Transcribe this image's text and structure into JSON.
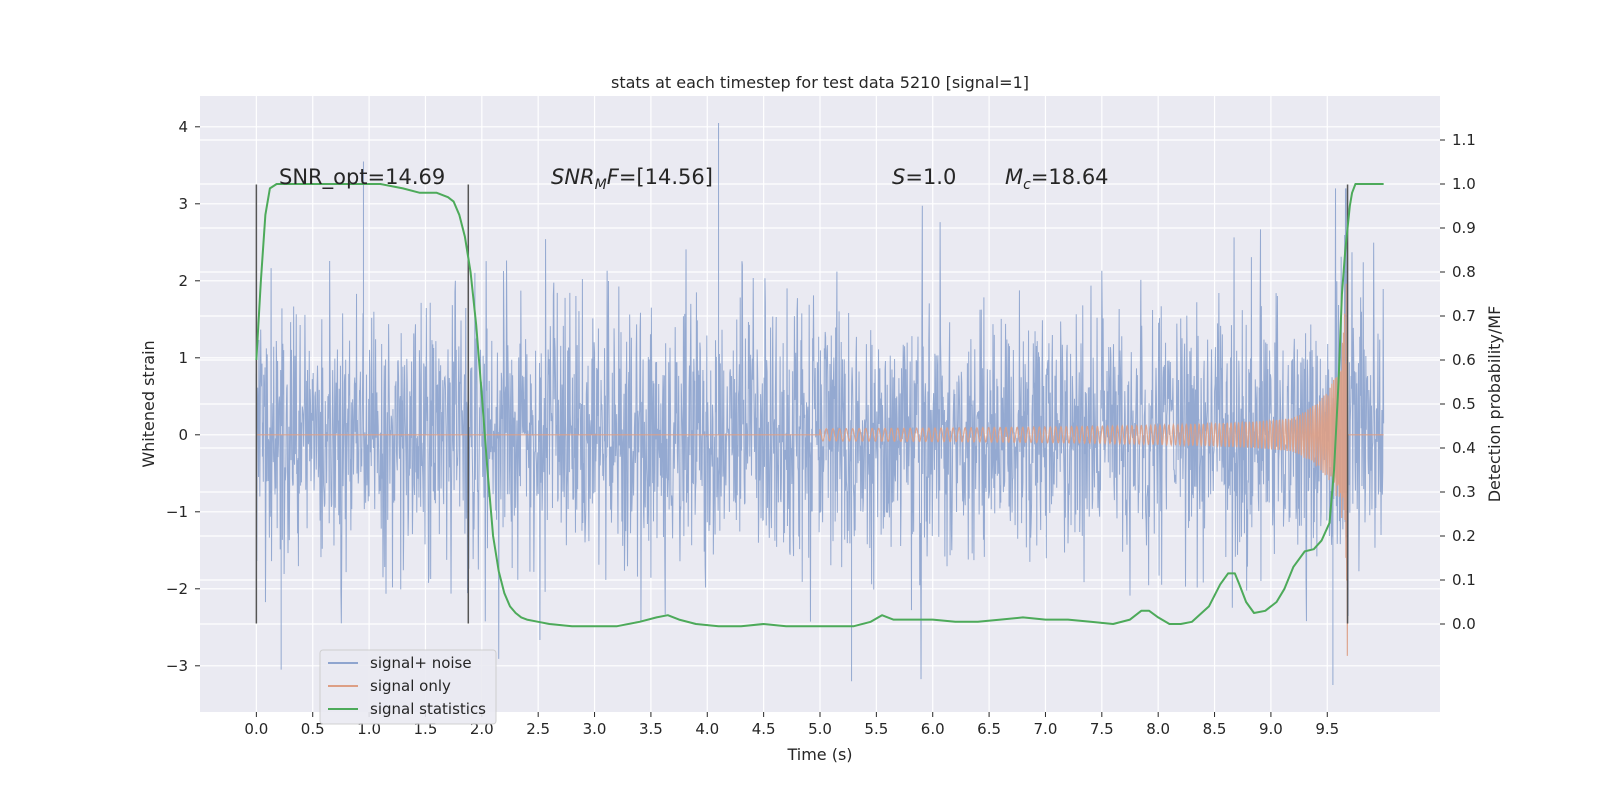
{
  "chart_data": {
    "type": "line",
    "title": "stats at each timestep for test data 5210 [signal=1]",
    "xlabel": "Time (s)",
    "ylabel_left": "Whitened strain",
    "ylabel_right": "Detection probability/MF",
    "x_ticks": [
      "0.0",
      "0.5",
      "1.0",
      "1.5",
      "2.0",
      "2.5",
      "3.0",
      "3.5",
      "4.0",
      "4.5",
      "5.0",
      "5.5",
      "6.0",
      "6.5",
      "7.0",
      "7.5",
      "8.0",
      "8.5",
      "9.0",
      "9.5"
    ],
    "y_left_ticks": [
      "4",
      "3",
      "2",
      "1",
      "0",
      "−1",
      "−2",
      "−3"
    ],
    "y_right_ticks": [
      "1.1",
      "1.0",
      "0.9",
      "0.8",
      "0.7",
      "0.6",
      "0.5",
      "0.4",
      "0.3",
      "0.2",
      "0.1",
      "0.0"
    ],
    "xlim": [
      -0.5,
      10.5
    ],
    "ylim_left": [
      -3.6,
      4.4
    ],
    "ylim_right": [
      -0.2,
      1.2
    ],
    "grid": true,
    "legend_position": "lower-left",
    "legend": [
      "signal+ noise",
      "signal only",
      "signal statistics"
    ],
    "annotations": {
      "snr_opt": "SNR_opt=14.69",
      "snr_mf_name": "SNR",
      "snr_mf_sub": "M",
      "snr_mf_name2": "F",
      "snr_mf_value": "=[14.56]",
      "s_name": "S",
      "s_value": "=1.0",
      "mc_name": "M",
      "mc_sub": "c",
      "mc_value": "=18.64"
    },
    "series": [
      {
        "name": "signal+ noise",
        "color": "#8fa5cf",
        "axis": "left",
        "description_range": [
          -3.3,
          4.05
        ],
        "x_range": [
          0.0,
          10.0
        ],
        "envelope": {
          "typical_abs": 1.5,
          "peak": 4.05,
          "peak_x": 4.1
        }
      },
      {
        "name": "signal only",
        "color": "#dd9f85",
        "axis": "left",
        "chirp": {
          "t_merge": 9.68,
          "start": 5.0,
          "max_amp": 2.9
        }
      },
      {
        "name": "signal statistics",
        "color": "#4daa5a",
        "axis": "right",
        "x": [
          0.0,
          0.04,
          0.08,
          0.12,
          0.18,
          0.25,
          0.35,
          0.5,
          0.7,
          0.9,
          1.1,
          1.3,
          1.45,
          1.6,
          1.7,
          1.75,
          1.8,
          1.85,
          1.9,
          1.95,
          2.0,
          2.05,
          2.1,
          2.15,
          2.2,
          2.25,
          2.3,
          2.35,
          2.4,
          2.5,
          2.6,
          2.8,
          3.0,
          3.2,
          3.4,
          3.55,
          3.65,
          3.75,
          3.9,
          4.1,
          4.3,
          4.5,
          4.7,
          4.9,
          5.1,
          5.3,
          5.45,
          5.55,
          5.65,
          5.8,
          6.0,
          6.2,
          6.4,
          6.6,
          6.8,
          7.0,
          7.2,
          7.4,
          7.6,
          7.75,
          7.85,
          7.92,
          8.0,
          8.1,
          8.2,
          8.3,
          8.45,
          8.55,
          8.62,
          8.68,
          8.72,
          8.78,
          8.85,
          8.95,
          9.05,
          9.12,
          9.2,
          9.3,
          9.38,
          9.45,
          9.52,
          9.56,
          9.6,
          9.63,
          9.66,
          9.68,
          9.7,
          9.72,
          9.75,
          9.8,
          9.85,
          9.9,
          10.0
        ],
        "y": [
          0.6,
          0.78,
          0.93,
          0.99,
          1.0,
          1.0,
          1.0,
          1.0,
          1.0,
          1.0,
          1.0,
          0.99,
          0.98,
          0.98,
          0.97,
          0.96,
          0.93,
          0.88,
          0.8,
          0.68,
          0.52,
          0.35,
          0.2,
          0.12,
          0.07,
          0.04,
          0.025,
          0.015,
          0.01,
          0.005,
          0.0,
          -0.005,
          -0.005,
          -0.005,
          0.005,
          0.015,
          0.02,
          0.01,
          0.0,
          -0.005,
          -0.005,
          0.0,
          -0.005,
          -0.005,
          -0.005,
          -0.005,
          0.005,
          0.02,
          0.01,
          0.01,
          0.01,
          0.005,
          0.005,
          0.01,
          0.015,
          0.01,
          0.01,
          0.005,
          0.0,
          0.01,
          0.03,
          0.03,
          0.015,
          0.0,
          0.0,
          0.005,
          0.04,
          0.09,
          0.115,
          0.115,
          0.09,
          0.05,
          0.025,
          0.03,
          0.05,
          0.08,
          0.13,
          0.165,
          0.17,
          0.19,
          0.23,
          0.35,
          0.55,
          0.75,
          0.85,
          0.9,
          0.95,
          0.98,
          1.0,
          1.0,
          1.0,
          1.0,
          1.0
        ]
      }
    ],
    "vertical_markers": [
      {
        "x": 0.0,
        "y_range": [
          -2.45,
          3.25
        ]
      },
      {
        "x": 1.88,
        "y_range": [
          -2.45,
          3.25
        ]
      },
      {
        "x": 9.68,
        "y_range": [
          -2.45,
          3.25
        ]
      }
    ]
  }
}
